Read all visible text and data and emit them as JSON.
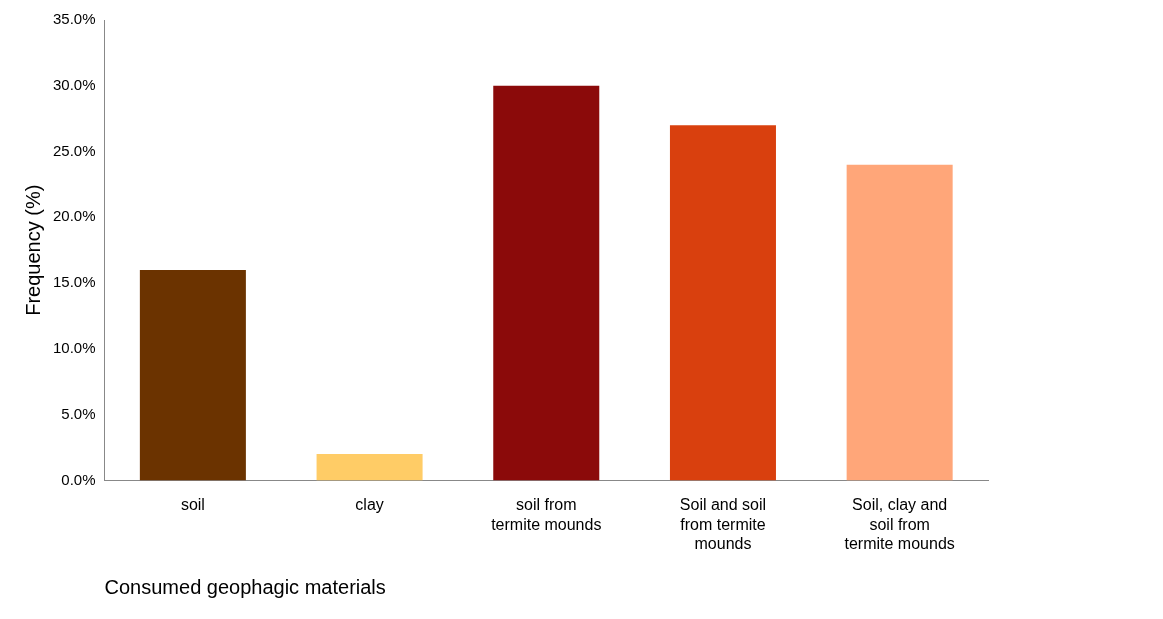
{
  "chart_data": {
    "type": "bar",
    "xlabel": "Consumed geophagic materials",
    "ylabel": "Frequency (%)",
    "categories": [
      "soil",
      "clay",
      "soil from termite mounds",
      "Soil and soil from termite mounds",
      "Soil, clay and soil from termite mounds"
    ],
    "values": [
      16,
      2,
      30,
      27,
      24
    ],
    "colors": [
      "#6b3300",
      "#ffcc66",
      "#8b0a0a",
      "#d9400e",
      "#ffa679"
    ],
    "ylim": [
      0,
      35
    ],
    "yticks": [
      {
        "value": 0,
        "label": "0.0%"
      },
      {
        "value": 5,
        "label": "5.0%"
      },
      {
        "value": 10,
        "label": "10.0%"
      },
      {
        "value": 15,
        "label": "15.0%"
      },
      {
        "value": 20,
        "label": "20.0%"
      },
      {
        "value": 25,
        "label": "25.0%"
      },
      {
        "value": 30,
        "label": "30.0%"
      },
      {
        "value": 35,
        "label": "35.0%"
      }
    ],
    "grid": false,
    "legend": false
  }
}
